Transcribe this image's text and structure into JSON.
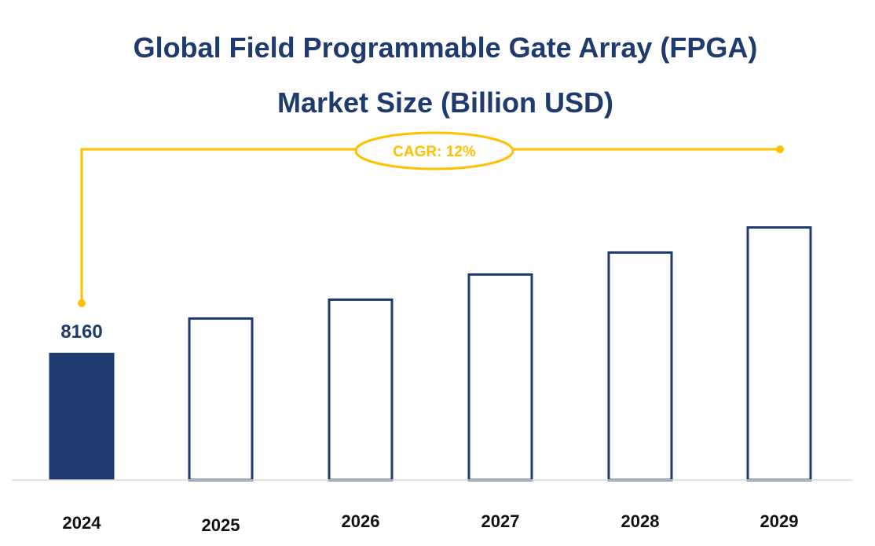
{
  "chart_data": {
    "type": "bar",
    "title": "Global Field Programmable Gate Array (FPGA)",
    "subtitle": "Market Size (Billion USD)",
    "categories": [
      "2024",
      "2025",
      "2026",
      "2027",
      "2028",
      "2029"
    ],
    "values": [
      8160,
      10430,
      11640,
      13250,
      14660,
      16270
    ],
    "data_labels": [
      "8160",
      "",
      "",
      "",
      "",
      ""
    ],
    "annotation": "CAGR: 12%",
    "ylim": [
      0,
      17000
    ],
    "grid": false,
    "legend": "none",
    "colors": {
      "bar": "#1f3a6e",
      "accent": "#ffc000",
      "axis": "#d9d9d9"
    }
  }
}
